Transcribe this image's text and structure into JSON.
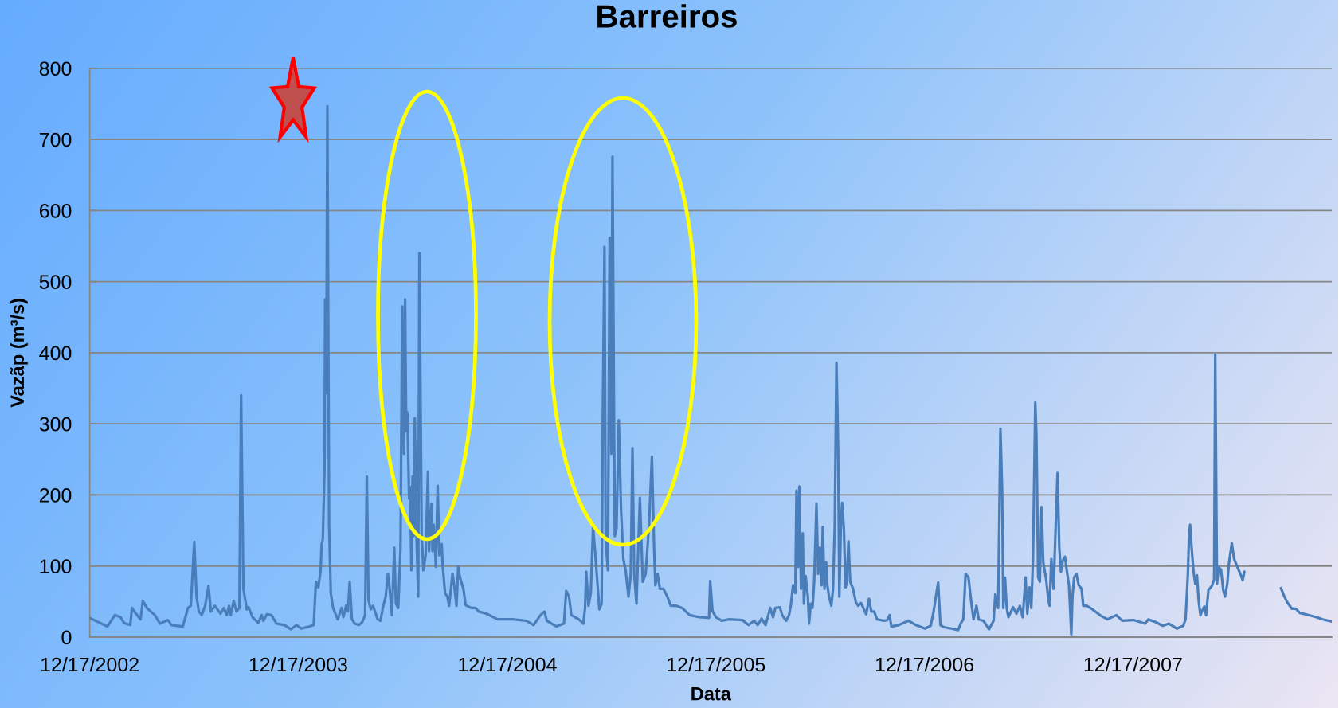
{
  "chart_data": {
    "type": "line",
    "title": "Barreiros",
    "xlabel": "Data",
    "ylabel": "Vazãp (m³/s)",
    "x": [
      "2002-12-17",
      "2003-01-17",
      "2003-01-30",
      "2003-02-09",
      "2003-02-15",
      "2003-02-26",
      "2003-03-01",
      "2003-03-08",
      "2003-03-16",
      "2003-03-20",
      "2003-03-27",
      "2003-04-10",
      "2003-04-19",
      "2003-05-03",
      "2003-05-09",
      "2003-05-29",
      "2003-06-07",
      "2003-06-12",
      "2003-06-18",
      "2003-06-22",
      "2003-06-26",
      "2003-07-01",
      "2003-07-07",
      "2003-07-13",
      "2003-07-17",
      "2003-07-24",
      "2003-08-03",
      "2003-08-09",
      "2003-08-14",
      "2003-08-18",
      "2003-08-21",
      "2003-08-26",
      "2003-08-31",
      "2003-09-05",
      "2003-09-08",
      "2003-09-12",
      "2003-09-18",
      "2003-09-21",
      "2003-09-28",
      "2003-10-08",
      "2003-10-14",
      "2003-10-17",
      "2003-10-23",
      "2003-10-31",
      "2003-11-09",
      "2003-11-23",
      "2003-12-04",
      "2003-12-14",
      "2003-12-22",
      "2004-01-06",
      "2004-01-13",
      "2004-01-17",
      "2004-01-21",
      "2004-01-25",
      "2004-01-27",
      "2004-01-29",
      "2004-02-01",
      "2004-02-02",
      "2004-02-04",
      "2004-02-06",
      "2004-02-09",
      "2004-02-12",
      "2004-02-16",
      "2004-02-24",
      "2004-03-02",
      "2004-03-05",
      "2004-03-10",
      "2004-03-13",
      "2004-03-16",
      "2004-03-20",
      "2004-03-25",
      "2004-04-01",
      "2004-04-07",
      "2004-04-12",
      "2004-04-15",
      "2004-04-18",
      "2004-04-22",
      "2004-04-26",
      "2004-05-04",
      "2004-05-09",
      "2004-05-13",
      "2004-05-18",
      "2004-05-22",
      "2004-05-25",
      "2004-05-29",
      "2004-06-02",
      "2004-06-05",
      "2004-06-09",
      "2004-06-13",
      "2004-06-16",
      "2004-06-19",
      "2004-06-21",
      "2004-06-23",
      "2004-06-25",
      "2004-06-28",
      "2004-06-30",
      "2004-07-02",
      "2004-07-04",
      "2004-07-06",
      "2004-07-08",
      "2004-07-11",
      "2004-07-14",
      "2004-07-16",
      "2004-07-20",
      "2004-07-23",
      "2004-07-27",
      "2004-07-31",
      "2004-08-02",
      "2004-08-06",
      "2004-08-08",
      "2004-08-10",
      "2004-08-14",
      "2004-08-17",
      "2004-08-20",
      "2004-08-24",
      "2004-08-26",
      "2004-08-30",
      "2004-09-03",
      "2004-09-06",
      "2004-09-12",
      "2004-09-15",
      "2004-09-19",
      "2004-09-22",
      "2004-09-25",
      "2004-10-01",
      "2004-10-05",
      "2004-10-15",
      "2004-10-22",
      "2004-10-28",
      "2004-11-10",
      "2004-11-30",
      "2004-12-26",
      "2005-01-19",
      "2005-02-01",
      "2005-02-13",
      "2005-02-20",
      "2005-02-24",
      "2005-03-13",
      "2005-03-26",
      "2005-03-30",
      "2005-04-04",
      "2005-04-08",
      "2005-04-21",
      "2005-04-29",
      "2005-05-02",
      "2005-05-04",
      "2005-05-08",
      "2005-05-12",
      "2005-05-16",
      "2005-05-21",
      "2005-05-27",
      "2005-05-31",
      "2005-06-02",
      "2005-06-05",
      "2005-06-07",
      "2005-06-09",
      "2005-06-11",
      "2005-06-14",
      "2005-06-17",
      "2005-06-19",
      "2005-06-23",
      "2005-06-26",
      "2005-06-30",
      "2005-07-04",
      "2005-07-08",
      "2005-07-12",
      "2005-07-17",
      "2005-07-21",
      "2005-07-24",
      "2005-07-27",
      "2005-07-31",
      "2005-08-06",
      "2005-08-11",
      "2005-08-16",
      "2005-08-22",
      "2005-08-27",
      "2005-08-31",
      "2005-09-02",
      "2005-09-06",
      "2005-09-10",
      "2005-09-16",
      "2005-09-23",
      "2005-09-29",
      "2005-10-09",
      "2005-10-19",
      "2005-11-01",
      "2005-11-18",
      "2005-12-05",
      "2005-12-07",
      "2005-12-11",
      "2005-12-17",
      "2005-12-27",
      "2006-01-09",
      "2006-02-01",
      "2006-02-12",
      "2006-02-22",
      "2006-02-28",
      "2006-03-07",
      "2006-03-14",
      "2006-03-22",
      "2006-03-27",
      "2006-03-31",
      "2006-04-08",
      "2006-04-12",
      "2006-04-19",
      "2006-04-24",
      "2006-04-27",
      "2006-05-01",
      "2006-05-05",
      "2006-05-07",
      "2006-05-10",
      "2006-05-12",
      "2006-05-15",
      "2006-05-18",
      "2006-05-20",
      "2006-05-23",
      "2006-05-27",
      "2006-05-29",
      "2006-06-01",
      "2006-06-04",
      "2006-06-07",
      "2006-06-11",
      "2006-06-14",
      "2006-06-17",
      "2006-06-20",
      "2006-06-22",
      "2006-06-25",
      "2006-06-28",
      "2006-06-30",
      "2006-07-03",
      "2006-07-07",
      "2006-07-10",
      "2006-07-13",
      "2006-07-16",
      "2006-07-19",
      "2006-07-21",
      "2006-07-24",
      "2006-07-26",
      "2006-07-29",
      "2006-08-01",
      "2006-08-03",
      "2006-08-06",
      "2006-08-09",
      "2006-08-14",
      "2006-08-19",
      "2006-08-23",
      "2006-08-28",
      "2006-09-01",
      "2006-09-06",
      "2006-09-11",
      "2006-09-15",
      "2006-09-20",
      "2006-09-25",
      "2006-10-07",
      "2006-10-13",
      "2006-10-17",
      "2006-10-20",
      "2006-11-02",
      "2006-11-19",
      "2006-12-02",
      "2006-12-18",
      "2006-12-28",
      "2007-01-02",
      "2007-01-10",
      "2007-01-14",
      "2007-01-20",
      "2007-02-02",
      "2007-02-14",
      "2007-02-19",
      "2007-02-23",
      "2007-02-27",
      "2007-03-04",
      "2007-03-10",
      "2007-03-13",
      "2007-03-18",
      "2007-03-22",
      "2007-03-30",
      "2007-04-09",
      "2007-04-17",
      "2007-04-20",
      "2007-04-25",
      "2007-04-29",
      "2007-05-02",
      "2007-05-04",
      "2007-05-07",
      "2007-05-10",
      "2007-05-13",
      "2007-05-21",
      "2007-05-27",
      "2007-06-02",
      "2007-06-07",
      "2007-06-12",
      "2007-06-15",
      "2007-06-19",
      "2007-06-22",
      "2007-06-25",
      "2007-06-29",
      "2007-07-01",
      "2007-07-04",
      "2007-07-07",
      "2007-07-10",
      "2007-07-13",
      "2007-07-18",
      "2007-07-22",
      "2007-07-24",
      "2007-07-27",
      "2007-07-31",
      "2007-08-04",
      "2007-08-07",
      "2007-08-10",
      "2007-08-13",
      "2007-08-16",
      "2007-08-20",
      "2007-08-23",
      "2007-08-27",
      "2007-08-31",
      "2007-09-02",
      "2007-09-05",
      "2007-09-09",
      "2007-09-13",
      "2007-09-18",
      "2007-09-21",
      "2007-09-27",
      "2007-10-07",
      "2007-10-20",
      "2007-11-02",
      "2007-11-18",
      "2007-11-28",
      "2007-12-18",
      "2008-01-07",
      "2008-01-13",
      "2008-01-26",
      "2008-02-07",
      "2008-02-18",
      "2008-03-03",
      "2008-03-14",
      "2008-03-18",
      "2008-03-22",
      "2008-03-24",
      "2008-03-26",
      "2008-03-29",
      "2008-04-01",
      "2008-04-04",
      "2008-04-07",
      "2008-04-10",
      "2008-04-13",
      "2008-04-16",
      "2008-04-20",
      "2008-04-23",
      "2008-04-27",
      "2008-05-03",
      "2008-05-07",
      "2008-05-09",
      "2008-05-12",
      "2008-05-15",
      "2008-05-19",
      "2008-05-23",
      "2008-05-26",
      "2008-05-30",
      "2008-06-02",
      "2008-06-07",
      "2008-06-11",
      "2008-06-17",
      "2008-06-23",
      "2008-06-26",
      "2008-06-29",
      "2008-07-30",
      "2008-09-01",
      "2008-09-07",
      "2008-09-12",
      "2008-09-20",
      "2008-09-27",
      "2008-10-04",
      "2008-10-19",
      "2008-11-02",
      "2008-11-13",
      "2008-11-29"
    ],
    "series": [
      {
        "color": "#4a7ebb",
        "values": [
          27,
          15,
          31,
          28,
          20,
          17,
          41,
          33,
          25,
          51,
          41,
          31,
          19,
          24,
          17,
          15,
          41,
          44,
          134,
          57,
          36,
          31,
          44,
          72,
          36,
          44,
          33,
          41,
          31,
          44,
          31,
          51,
          36,
          41,
          340,
          68,
          39,
          42,
          28,
          20,
          31,
          23,
          32,
          31,
          19,
          17,
          11,
          17,
          12,
          15,
          17,
          78,
          70,
          92,
          131,
          137,
          237,
          475,
          343,
          747,
          158,
          62,
          41,
          25,
          41,
          28,
          45,
          36,
          78,
          25,
          19,
          17,
          21,
          31,
          226,
          52,
          39,
          44,
          25,
          23,
          41,
          57,
          89,
          68,
          31,
          126,
          47,
          41,
          126,
          465,
          258,
          475,
          290,
          316,
          195,
          211,
          94,
          226,
          142,
          308,
          142,
          57,
          540,
          147,
          94,
          115,
          233,
          121,
          187,
          121,
          158,
          99,
          213,
          115,
          131,
          99,
          62,
          57,
          44,
          89,
          73,
          44,
          99,
          84,
          68,
          45,
          41,
          41,
          36,
          33,
          25,
          25,
          23,
          17,
          31,
          36,
          23,
          15,
          19,
          65,
          57,
          31,
          25,
          19,
          41,
          92,
          44,
          62,
          155,
          105,
          39,
          47,
          308,
          549,
          137,
          115,
          94,
          562,
          258,
          676,
          142,
          152,
          305,
          179,
          110,
          94,
          57,
          89,
          266,
          89,
          47,
          196,
          78,
          89,
          158,
          254,
          121,
          73,
          89,
          68,
          68,
          57,
          44,
          44,
          41,
          31,
          28,
          27,
          79,
          37,
          28,
          23,
          25,
          24,
          17,
          23,
          17,
          26,
          17,
          41,
          28,
          41,
          42,
          31,
          23,
          31,
          44,
          73,
          62,
          206,
          99,
          212,
          68,
          146,
          47,
          86,
          57,
          19,
          47,
          41,
          78,
          188,
          89,
          126,
          73,
          155,
          68,
          105,
          73,
          57,
          44,
          68,
          158,
          386,
          263,
          57,
          168,
          189,
          152,
          70,
          78,
          135,
          78,
          68,
          49,
          44,
          48,
          41,
          32,
          54,
          36,
          36,
          25,
          23,
          24,
          31,
          15,
          17,
          23,
          17,
          12,
          16,
          36,
          77,
          17,
          14,
          12,
          10,
          20,
          25,
          89,
          84,
          42,
          25,
          44,
          25,
          23,
          11,
          23,
          60,
          41,
          293,
          205,
          41,
          84,
          41,
          28,
          42,
          33,
          44,
          28,
          84,
          33,
          70,
          41,
          110,
          330,
          285,
          84,
          78,
          183,
          105,
          81,
          52,
          44,
          110,
          68,
          163,
          231,
          126,
          92,
          107,
          113,
          94,
          73,
          4,
          57,
          84,
          89,
          73,
          68,
          44,
          44,
          39,
          31,
          25,
          31,
          23,
          24,
          19,
          25,
          21,
          16,
          19,
          12,
          16,
          25,
          87,
          139,
          158,
          122,
          92,
          75,
          87,
          51,
          31,
          37,
          43,
          31,
          66,
          72,
          81,
          397,
          75,
          98,
          95,
          66,
          57,
          75,
          104,
          132,
          110,
          98,
          87,
          80,
          92,
          null,
          69,
          57,
          49,
          40,
          40,
          34,
          31,
          28,
          25,
          22
        ]
      }
    ],
    "xlim": [
      "2002-12-17",
      "2008-11-29"
    ],
    "xticks": [
      {
        "value": "2002-12-17",
        "label": "12/17/2002"
      },
      {
        "value": "2003-12-17",
        "label": "12/17/2003"
      },
      {
        "value": "2004-12-17",
        "label": "12/17/2004"
      },
      {
        "value": "2005-12-17",
        "label": "12/17/2005"
      },
      {
        "value": "2006-12-17",
        "label": "12/17/2006"
      },
      {
        "value": "2007-12-17",
        "label": "12/17/2007"
      }
    ],
    "ylim": [
      0,
      800
    ],
    "yticks": [
      0,
      100,
      200,
      300,
      400,
      500,
      600,
      700,
      800
    ],
    "grid": "y",
    "line_style": "solid"
  }
}
